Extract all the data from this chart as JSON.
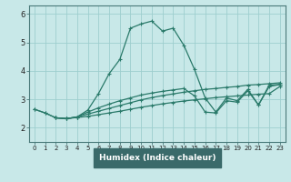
{
  "xlabel": "Humidex (Indice chaleur)",
  "bg_color": "#c8e8e8",
  "grid_color": "#9dcece",
  "line_color": "#2a7a6a",
  "axis_bg": "#3a6a6a",
  "xlim": [
    -0.5,
    23.5
  ],
  "ylim": [
    1.5,
    6.3
  ],
  "xticks": [
    0,
    1,
    2,
    3,
    4,
    5,
    6,
    7,
    8,
    9,
    10,
    11,
    12,
    13,
    14,
    15,
    16,
    17,
    18,
    19,
    20,
    21,
    22,
    23
  ],
  "yticks": [
    2,
    3,
    4,
    5,
    6
  ],
  "curve1_x": [
    0,
    1,
    2,
    3,
    4,
    5,
    6,
    7,
    8,
    9,
    10,
    11,
    12,
    13,
    14,
    15,
    16,
    17,
    18,
    19,
    20,
    21,
    22,
    23
  ],
  "curve1_y": [
    2.65,
    2.52,
    2.35,
    2.32,
    2.38,
    2.62,
    3.2,
    3.9,
    4.4,
    5.5,
    5.65,
    5.75,
    5.4,
    5.5,
    4.9,
    4.05,
    3.05,
    2.55,
    3.05,
    2.95,
    3.35,
    2.8,
    3.5,
    3.52
  ],
  "curve2_x": [
    0,
    1,
    2,
    3,
    4,
    5,
    6,
    7,
    8,
    9,
    10,
    11,
    12,
    13,
    14,
    15,
    16,
    17,
    18,
    19,
    20,
    21,
    22,
    23
  ],
  "curve2_y": [
    2.65,
    2.52,
    2.35,
    2.32,
    2.38,
    2.55,
    2.7,
    2.83,
    2.95,
    3.05,
    3.15,
    3.22,
    3.28,
    3.33,
    3.38,
    3.12,
    2.55,
    2.52,
    2.95,
    2.9,
    3.3,
    2.8,
    3.45,
    3.52
  ],
  "curve3_x": [
    2,
    3,
    4,
    5,
    6,
    7,
    8,
    9,
    10,
    11,
    12,
    13,
    14,
    15,
    16,
    17,
    18,
    19,
    20,
    21,
    22,
    23
  ],
  "curve3_y": [
    2.35,
    2.32,
    2.38,
    2.48,
    2.58,
    2.68,
    2.78,
    2.88,
    2.98,
    3.06,
    3.13,
    3.19,
    3.25,
    3.3,
    3.35,
    3.38,
    3.42,
    3.45,
    3.5,
    3.52,
    3.55,
    3.58
  ],
  "curve4_x": [
    2,
    3,
    4,
    5,
    6,
    7,
    8,
    9,
    10,
    11,
    12,
    13,
    14,
    15,
    16,
    17,
    18,
    19,
    20,
    21,
    22,
    23
  ],
  "curve4_y": [
    2.35,
    2.32,
    2.36,
    2.4,
    2.46,
    2.52,
    2.58,
    2.65,
    2.72,
    2.78,
    2.84,
    2.89,
    2.94,
    2.98,
    3.02,
    3.06,
    3.09,
    3.12,
    3.15,
    3.18,
    3.2,
    3.45
  ]
}
